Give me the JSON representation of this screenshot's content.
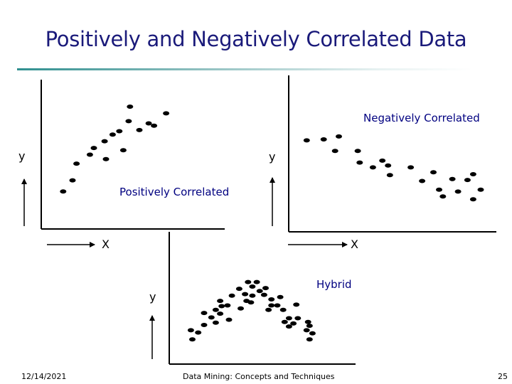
{
  "title": "Positively and Negatively Correlated Data",
  "labels": {
    "negative": "Negatively Correlated",
    "positive": "Positively Correlated",
    "hybrid": "Hybrid"
  },
  "axes": {
    "x": "X",
    "y": "y"
  },
  "footer": {
    "date": "12/14/2021",
    "course": "Data Mining: Concepts and Techniques",
    "page": "25"
  },
  "chart_data": [
    {
      "type": "scatter",
      "title": "",
      "xlabel": "X",
      "ylabel": "y",
      "trend": "positive",
      "points": [
        [
          33,
          49
        ],
        [
          10,
          10
        ],
        [
          42,
          39
        ],
        [
          52,
          64
        ],
        [
          17,
          20
        ],
        [
          30,
          43
        ],
        [
          55,
          47
        ],
        [
          67,
          65
        ],
        [
          41,
          55
        ],
        [
          47,
          61
        ],
        [
          78,
          69
        ],
        [
          74,
          71
        ],
        [
          87,
          80
        ],
        [
          20,
          35
        ],
        [
          59,
          73
        ],
        [
          60,
          86
        ]
      ]
    },
    {
      "type": "scatter",
      "title": "",
      "xlabel": "X",
      "ylabel": "y",
      "trend": "negative",
      "points": [
        [
          5,
          74
        ],
        [
          14,
          75
        ],
        [
          22,
          78
        ],
        [
          20,
          63
        ],
        [
          32,
          63
        ],
        [
          33,
          51
        ],
        [
          45,
          53
        ],
        [
          48,
          48
        ],
        [
          40,
          46
        ],
        [
          49,
          38
        ],
        [
          60,
          46
        ],
        [
          66,
          32
        ],
        [
          72,
          41
        ],
        [
          75,
          23
        ],
        [
          82,
          34
        ],
        [
          90,
          33
        ],
        [
          85,
          21
        ],
        [
          93,
          39
        ],
        [
          93,
          13
        ],
        [
          97,
          23
        ],
        [
          77,
          16
        ]
      ]
    },
    {
      "type": "scatter",
      "title": "",
      "xlabel": "X",
      "ylabel": "y",
      "trend": "hybrid",
      "points": [
        [
          8,
          14
        ],
        [
          7,
          26
        ],
        [
          12,
          23
        ],
        [
          16,
          33
        ],
        [
          16,
          49
        ],
        [
          21,
          43
        ],
        [
          24,
          53
        ],
        [
          27,
          48
        ],
        [
          28,
          58
        ],
        [
          33,
          40
        ],
        [
          32,
          59
        ],
        [
          35,
          72
        ],
        [
          40,
          81
        ],
        [
          44,
          74
        ],
        [
          49,
          72
        ],
        [
          49,
          84
        ],
        [
          46,
          90
        ],
        [
          52,
          90
        ],
        [
          54,
          78
        ],
        [
          58,
          82
        ],
        [
          57,
          73
        ],
        [
          62,
          67
        ],
        [
          62,
          59
        ],
        [
          68,
          70
        ],
        [
          70,
          53
        ],
        [
          74,
          42
        ],
        [
          74,
          31
        ],
        [
          79,
          60
        ],
        [
          80,
          42
        ],
        [
          86,
          26
        ],
        [
          87,
          37
        ],
        [
          90,
          22
        ],
        [
          88,
          14
        ],
        [
          88,
          32
        ],
        [
          60,
          53
        ],
        [
          48,
          63
        ],
        [
          41,
          55
        ],
        [
          45,
          65
        ],
        [
          66,
          59
        ],
        [
          71,
          37
        ],
        [
          77,
          35
        ],
        [
          24,
          36
        ],
        [
          27,
          65
        ]
      ]
    }
  ]
}
